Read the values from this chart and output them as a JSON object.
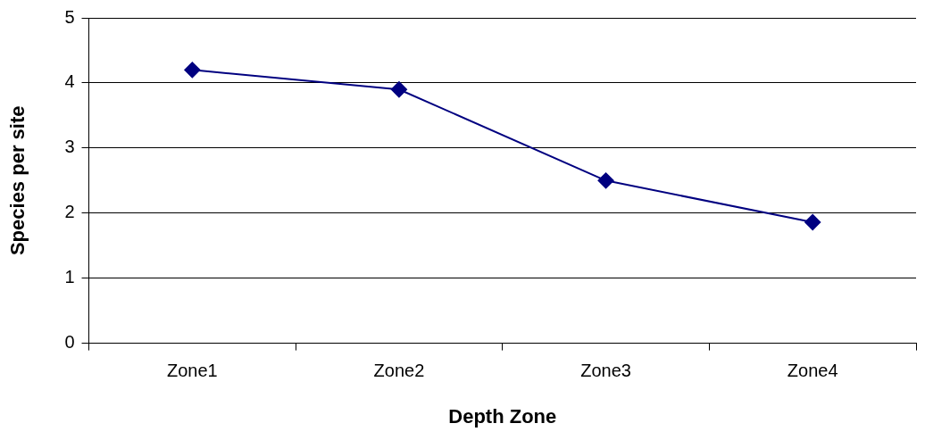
{
  "chart_data": {
    "type": "line",
    "xlabel": "Depth Zone",
    "ylabel": "Species per site",
    "categories": [
      "Zone1",
      "Zone2",
      "Zone3",
      "Zone4"
    ],
    "series": [
      {
        "color": "#000080",
        "values": [
          4.2,
          3.9,
          2.5,
          1.86
        ]
      }
    ],
    "ylim": [
      0,
      5
    ],
    "yticks": [
      0,
      1,
      2,
      3,
      4,
      5
    ],
    "grid": "y",
    "legend": false,
    "marker": "diamond",
    "line_style": "solid"
  }
}
